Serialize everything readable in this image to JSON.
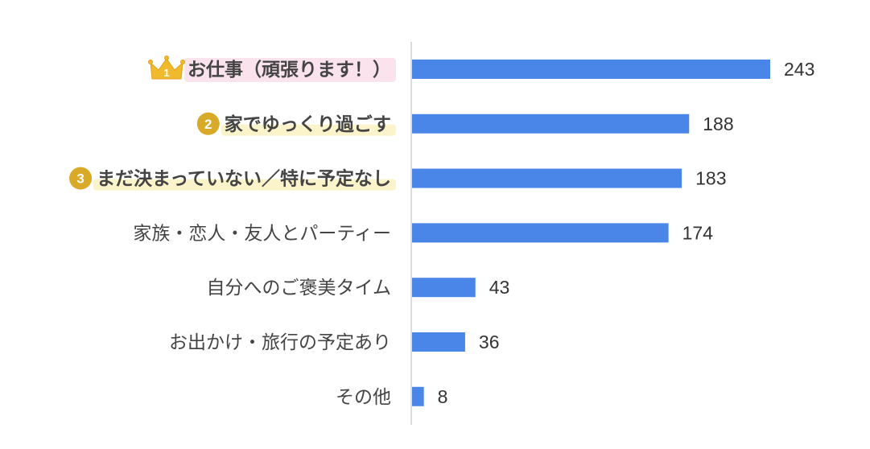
{
  "chart_data": {
    "type": "bar",
    "orientation": "horizontal",
    "categories": [
      "お仕事（頑張ります！）",
      "家でゆっくり過ごす",
      "まだ決まっていない／特に予定なし",
      "家族・恋人・友人とパーティー",
      "自分へのご褒美タイム",
      "お出かけ・旅行の予定あり",
      "その他"
    ],
    "values": [
      243,
      188,
      183,
      174,
      43,
      36,
      8
    ],
    "ranks": [
      "1",
      "2",
      "3"
    ],
    "xlim": [
      0,
      270
    ],
    "grid": false,
    "legend": "none",
    "title": "",
    "xlabel": "",
    "ylabel": "",
    "colors": {
      "bar": "#4a86e8",
      "rank1_text": "#e5337c",
      "rank_text": "#333333",
      "label_text": "#444444",
      "badge": "#d9a928",
      "highlight_pink": "#fbe3ee",
      "highlight_yellow": "#fbf3c9"
    },
    "icons": [
      "crown-icon",
      "rank-2-badge",
      "rank-3-badge"
    ]
  }
}
